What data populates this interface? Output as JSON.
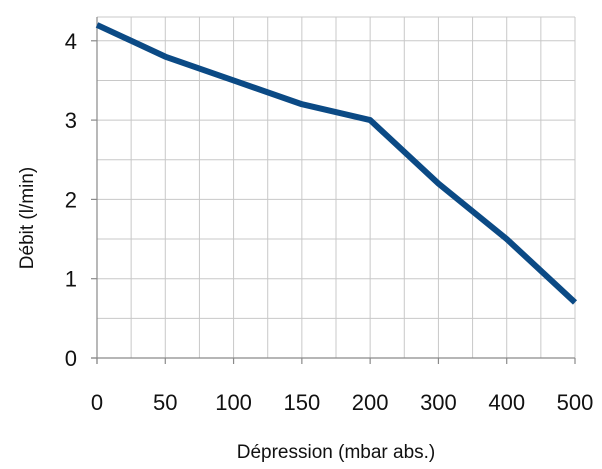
{
  "chart_data": {
    "type": "line",
    "title": "",
    "xlabel": "Dépression (mbar abs.)",
    "ylabel": "Débit (l/min)",
    "x_ticks": [
      "0",
      "50",
      "100",
      "150",
      "200",
      "300",
      "400",
      "500"
    ],
    "y_ticks": [
      "0",
      "1",
      "2",
      "3",
      "4"
    ],
    "ylim": [
      0,
      4.3
    ],
    "grid": true,
    "line_color": "#0b4a85",
    "series": [
      {
        "x": [
          "0",
          "50",
          "100",
          "150",
          "200",
          "300",
          "400",
          "500"
        ],
        "values": [
          4.2,
          3.8,
          3.5,
          3.2,
          3.0,
          2.2,
          1.5,
          0.7
        ]
      }
    ]
  }
}
